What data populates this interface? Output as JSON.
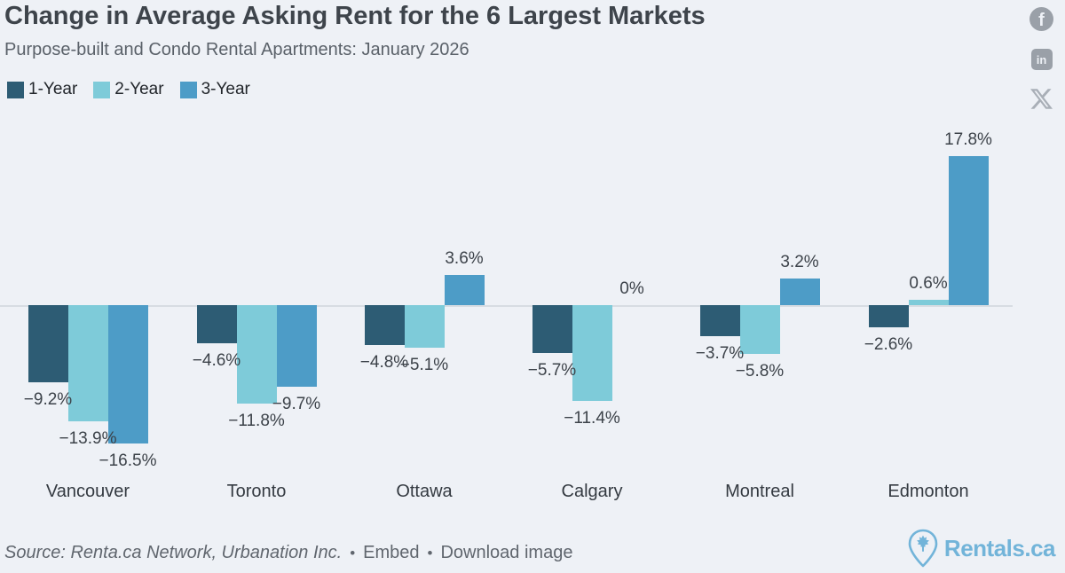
{
  "chart_data": {
    "type": "bar",
    "title": "Change in Average Asking Rent for the 6 Largest Markets",
    "subtitle": "Purpose-built and Condo Rental Apartments: January 2026",
    "categories": [
      "Vancouver",
      "Toronto",
      "Ottawa",
      "Calgary",
      "Montreal",
      "Edmonton"
    ],
    "series": [
      {
        "name": "1-Year",
        "color": "#2d5c74",
        "values": [
          -9.2,
          -4.6,
          -4.8,
          -5.7,
          -3.7,
          -2.6
        ],
        "labels": [
          "−9.2%",
          "−4.6%",
          "−4.8%",
          "−5.7%",
          "−3.7%",
          "−2.6%"
        ]
      },
      {
        "name": "2-Year",
        "color": "#7ecbd9",
        "values": [
          -13.9,
          -11.8,
          -5.1,
          -11.4,
          -5.8,
          0.6
        ],
        "labels": [
          "−13.9%",
          "−11.8%",
          "−5.1%",
          "−11.4%",
          "−5.8%",
          "0.6%"
        ]
      },
      {
        "name": "3-Year",
        "color": "#4d9cc7",
        "values": [
          -16.5,
          -9.7,
          3.6,
          0,
          3.2,
          17.8
        ],
        "labels": [
          "−16.5%",
          "−9.7%",
          "3.6%",
          "0%",
          "3.2%",
          "17.8%"
        ]
      }
    ],
    "ylabel": "",
    "xlabel": "",
    "baseline": 0,
    "grid": "zero-line-only",
    "legend_position": "top-left",
    "value_labels_shown": true,
    "background_color": "#eef1f6",
    "zero_line_color": "#d7dce2"
  },
  "social": {
    "icons": [
      {
        "name": "facebook-icon",
        "glyph": "f"
      },
      {
        "name": "linkedin-icon",
        "glyph": "in"
      },
      {
        "name": "x-icon",
        "glyph": "X"
      }
    ],
    "icon_color": "#9aa0a8"
  },
  "footer": {
    "source": "Source: Renta.ca Network, Urbanation Inc.",
    "bullet": "•",
    "embed_label": "Embed",
    "download_label": "Download image",
    "logo_text": "Rentals.ca",
    "logo_color": "#72b4d9"
  }
}
